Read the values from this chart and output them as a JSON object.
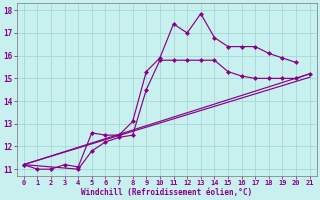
{
  "xlabel": "Windchill (Refroidissement éolien,°C)",
  "background_color": "#c8f0ee",
  "grid_color": "#aadcdc",
  "line_color": "#880088",
  "xlim": [
    -0.5,
    21.5
  ],
  "ylim": [
    10.7,
    18.3
  ],
  "xticks": [
    0,
    1,
    2,
    3,
    4,
    5,
    6,
    7,
    8,
    9,
    10,
    11,
    12,
    13,
    14,
    15,
    16,
    17,
    18,
    19,
    20,
    21
  ],
  "yticks": [
    11,
    12,
    13,
    14,
    15,
    16,
    17,
    18
  ],
  "curve1_x": [
    0,
    1,
    2,
    3,
    4,
    5,
    6,
    7,
    8,
    9,
    10,
    11,
    12,
    13,
    14,
    15,
    16,
    17,
    18,
    19,
    20
  ],
  "curve1_y": [
    11.2,
    11.0,
    11.0,
    11.2,
    11.1,
    12.6,
    12.5,
    12.5,
    13.1,
    15.3,
    15.9,
    17.4,
    17.0,
    17.85,
    16.8,
    16.4,
    16.4,
    16.4,
    16.1,
    15.9,
    15.7
  ],
  "curve2_x": [
    0,
    4,
    5,
    6,
    7,
    8,
    9,
    10,
    11,
    12,
    13,
    14,
    15,
    16,
    17,
    18,
    19,
    20,
    21
  ],
  "curve2_y": [
    11.2,
    11.0,
    11.8,
    12.2,
    12.4,
    12.5,
    14.5,
    15.8,
    15.8,
    15.8,
    15.8,
    15.8,
    15.3,
    15.1,
    15.0,
    15.0,
    15.0,
    15.0,
    15.2
  ],
  "curve3_x": [
    0,
    21
  ],
  "curve3_y": [
    11.2,
    15.2
  ],
  "curve4_x": [
    0,
    21
  ],
  "curve4_y": [
    11.2,
    15.05
  ]
}
